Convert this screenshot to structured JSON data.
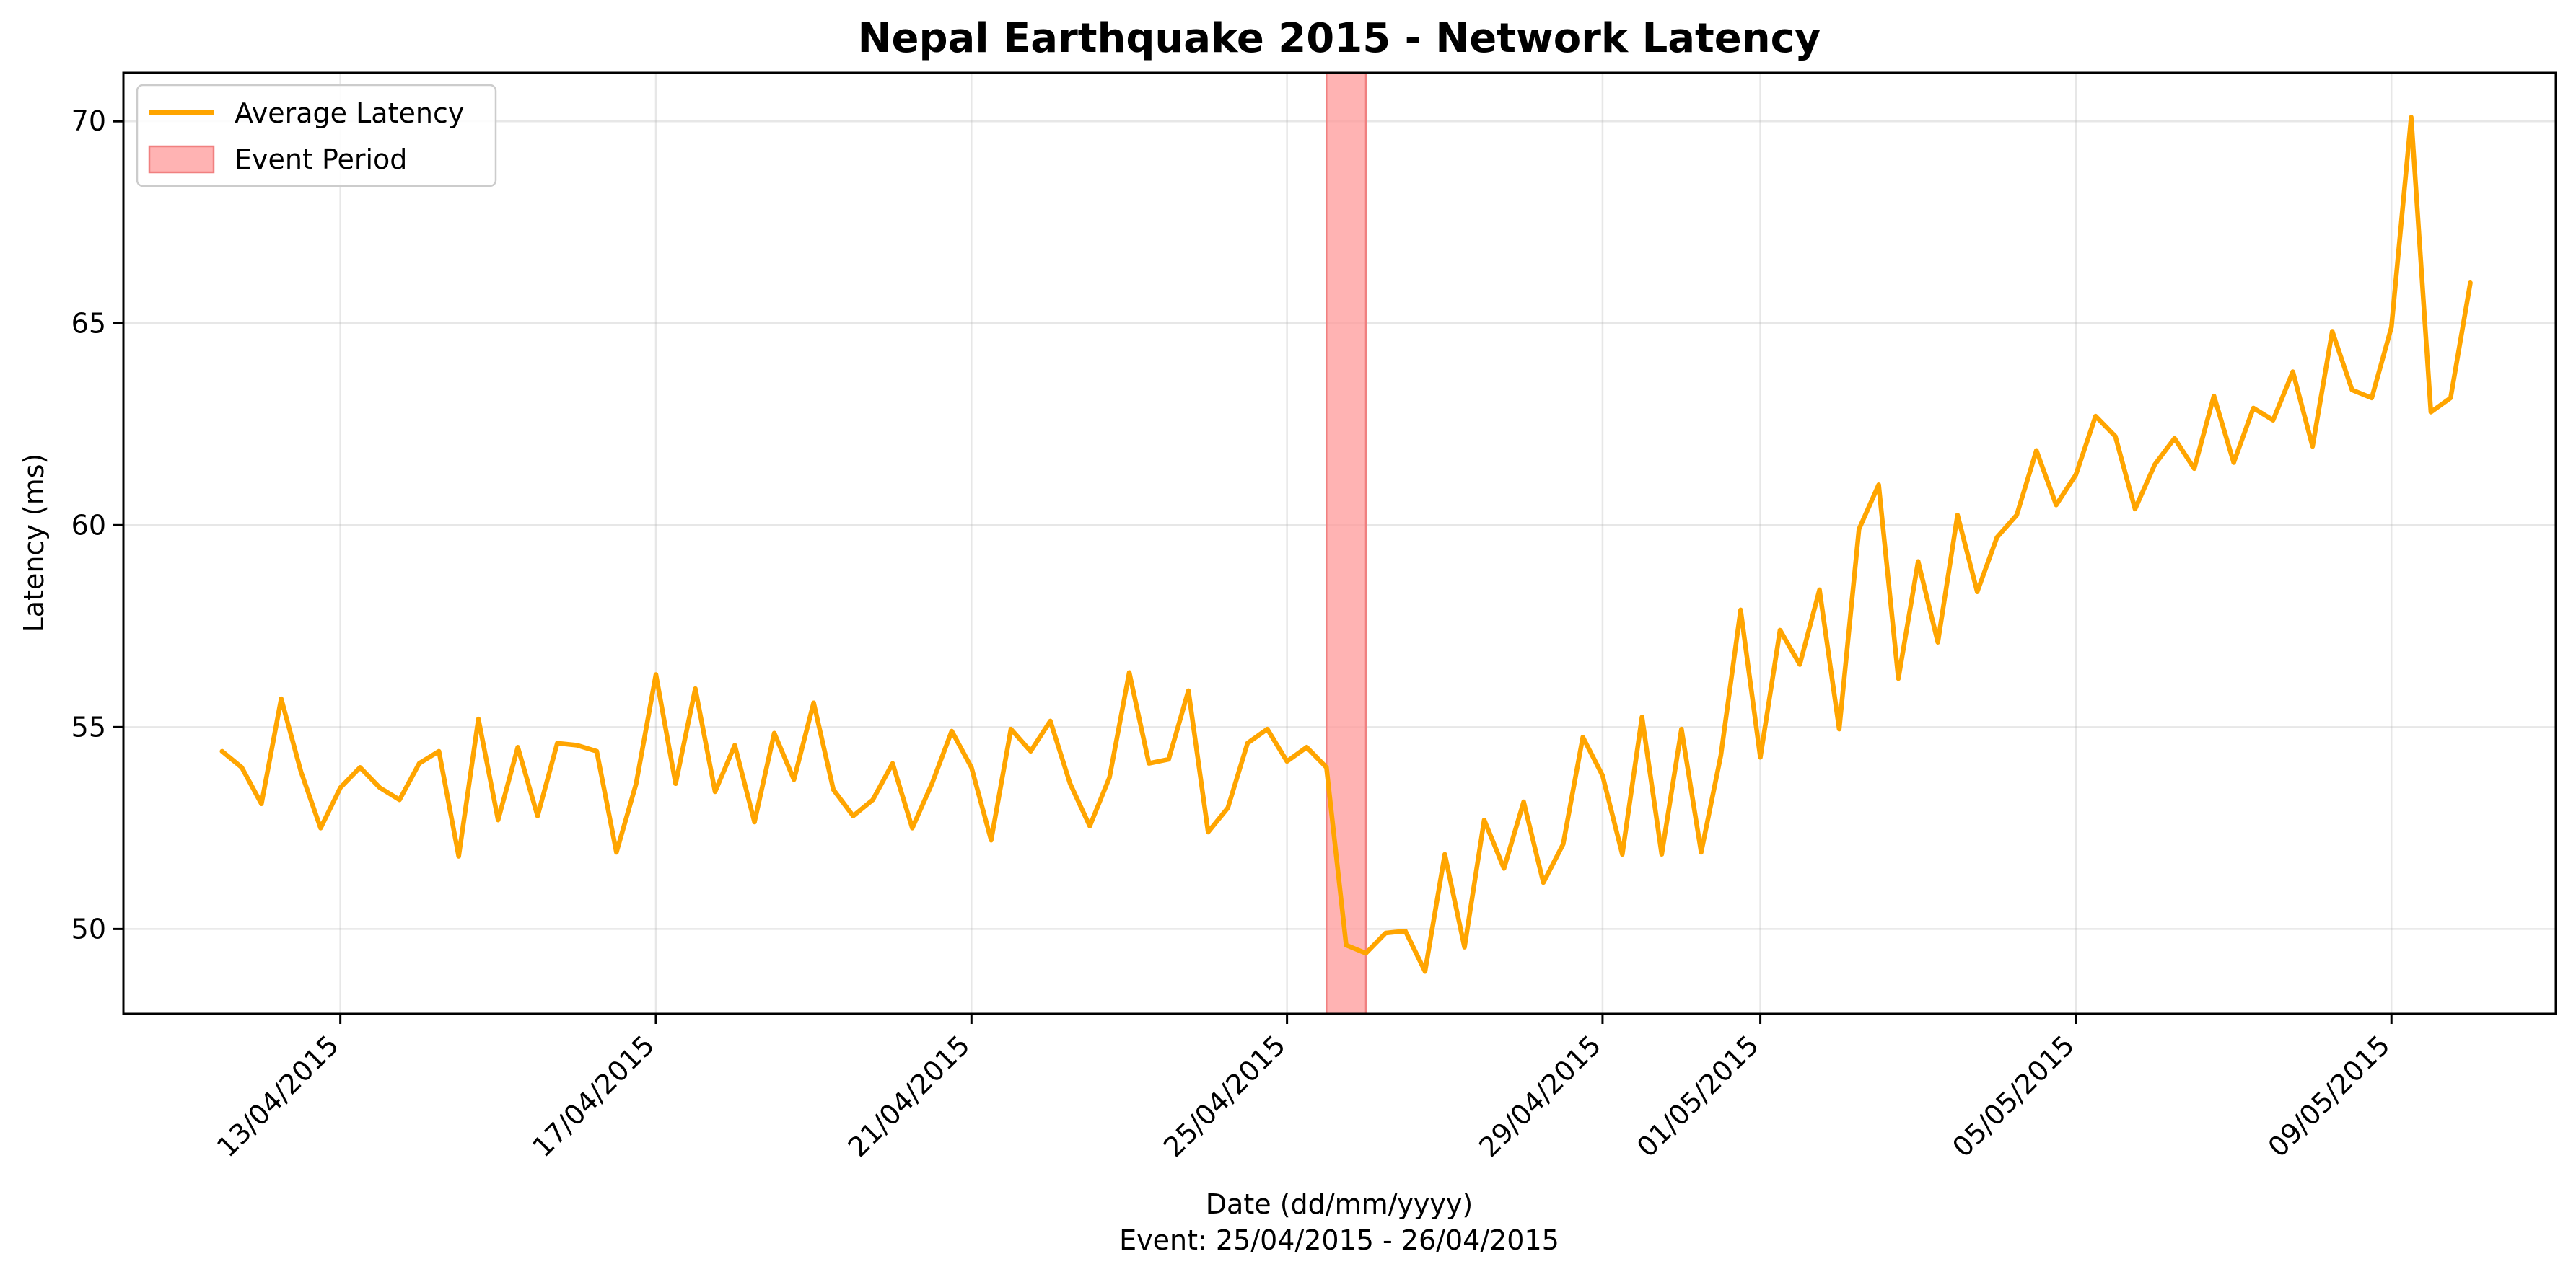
{
  "chart_data": {
    "type": "line",
    "title": "Nepal Earthquake 2015 - Network Latency",
    "xlabel": "Date (dd/mm/yyyy)",
    "xlabel_sub": "Event: 25/04/2015 - 26/04/2015",
    "ylabel": "Latency (ms)",
    "xlim": [
      "2015-04-10T06:00",
      "2015-05-11T02:00"
    ],
    "ylim": [
      47.9,
      71.2
    ],
    "x_ticks": [
      {
        "date": "2015-04-13",
        "label": "13/04/2015"
      },
      {
        "date": "2015-04-17",
        "label": "17/04/2015"
      },
      {
        "date": "2015-04-21",
        "label": "21/04/2015"
      },
      {
        "date": "2015-04-25",
        "label": "25/04/2015"
      },
      {
        "date": "2015-04-29",
        "label": "29/04/2015"
      },
      {
        "date": "2015-05-01",
        "label": "01/05/2015"
      },
      {
        "date": "2015-05-05",
        "label": "05/05/2015"
      },
      {
        "date": "2015-05-09",
        "label": "09/05/2015"
      }
    ],
    "y_ticks": [
      50,
      55,
      60,
      65,
      70
    ],
    "grid": true,
    "legend_position": "top-left",
    "event_period": {
      "name": "Event Period",
      "start": "2015-04-25T12:00",
      "end": "2015-04-26T00:00",
      "color": "#ff9999"
    },
    "series": [
      {
        "name": "Average Latency",
        "color": "#ffa500",
        "x_start": "2015-04-11T12:00",
        "x_step_hours": 6,
        "values": [
          54.4,
          54.0,
          53.1,
          55.7,
          53.9,
          52.5,
          53.5,
          54.0,
          53.5,
          53.2,
          54.1,
          54.4,
          51.8,
          55.2,
          52.7,
          54.5,
          52.8,
          54.6,
          54.55,
          54.4,
          51.9,
          53.6,
          56.3,
          53.6,
          55.95,
          53.4,
          54.55,
          52.65,
          54.85,
          53.7,
          55.6,
          53.45,
          52.8,
          53.2,
          54.1,
          52.5,
          53.6,
          54.9,
          54.0,
          52.2,
          54.95,
          54.4,
          55.15,
          53.6,
          52.55,
          53.75,
          56.35,
          54.1,
          54.2,
          55.9,
          52.4,
          53.0,
          54.6,
          54.95,
          54.15,
          54.5,
          54.0,
          49.6,
          49.4,
          49.9,
          49.95,
          48.95,
          51.85,
          49.55,
          52.7,
          51.5,
          53.15,
          51.15,
          52.1,
          54.75,
          53.8,
          51.85,
          55.25,
          51.85,
          54.95,
          51.9,
          54.3,
          57.9,
          54.25,
          57.4,
          56.55,
          58.4,
          54.95,
          59.9,
          61.0,
          56.2,
          59.1,
          57.1,
          60.25,
          58.35,
          59.7,
          60.25,
          61.85,
          60.5,
          61.25,
          62.7,
          62.2,
          60.4,
          61.5,
          62.15,
          61.4,
          63.2,
          61.55,
          62.9,
          62.6,
          63.8,
          61.95,
          64.8,
          63.35,
          63.15,
          64.9,
          70.1,
          62.8,
          63.15,
          66.0
        ]
      }
    ]
  }
}
